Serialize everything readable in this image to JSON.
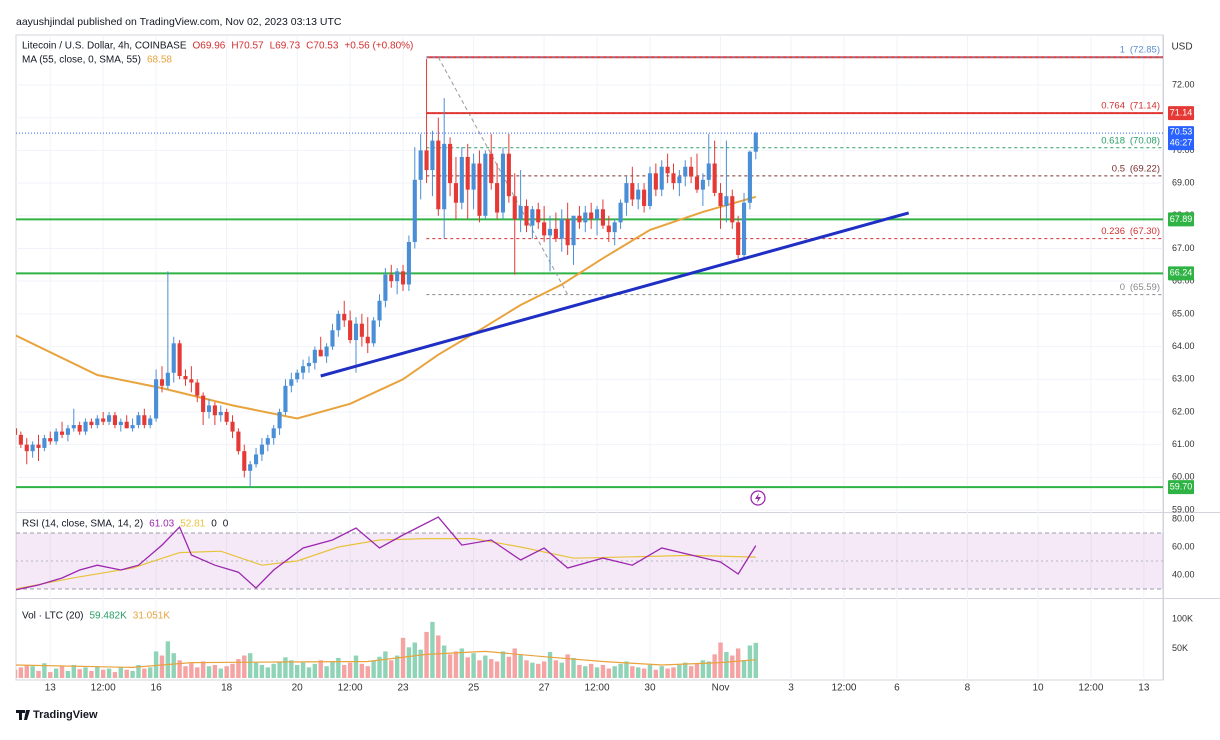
{
  "header": {
    "publisher": "aayushjindal published on TradingView.com, Nov 02, 2023 03:13 UTC",
    "brand": "TradingView"
  },
  "chart_data": {
    "type": "candlestick",
    "title": "Litecoin / U.S. Dollar, 4h, COINBASE",
    "legend_values": [
      "O69.96",
      "H70.57",
      "L69.73",
      "C70.53",
      "+0.56 (+0.80%)"
    ],
    "currency": "USD",
    "up_color": "#4a8fd6",
    "down_color": "#e53935",
    "xlim": [
      -2.55,
      195.6
    ],
    "xticks": [
      {
        "value": 6,
        "label": "13"
      },
      {
        "value": 15,
        "label": "12:00"
      },
      {
        "value": 24,
        "label": "16"
      },
      {
        "value": 36,
        "label": "18"
      },
      {
        "value": 48,
        "label": "20"
      },
      {
        "value": 57,
        "label": "12:00"
      },
      {
        "value": 66,
        "label": "23"
      },
      {
        "value": 78,
        "label": "25"
      },
      {
        "value": 90,
        "label": "27"
      },
      {
        "value": 99,
        "label": "12:00"
      },
      {
        "value": 108,
        "label": "30"
      },
      {
        "value": 120,
        "label": "Nov"
      },
      {
        "value": 132,
        "label": "3"
      },
      {
        "value": 141,
        "label": "12:00"
      },
      {
        "value": 150,
        "label": "6"
      },
      {
        "value": 162,
        "label": "8"
      },
      {
        "value": 174,
        "label": "10"
      },
      {
        "value": 183,
        "label": "12:00"
      },
      {
        "value": 192,
        "label": "13"
      }
    ],
    "ylim": [
      58.94,
      73.53
    ],
    "yticks": [
      {
        "value": 59,
        "label": "59.00"
      },
      {
        "value": 60,
        "label": "60.00"
      },
      {
        "value": 61,
        "label": "61.00"
      },
      {
        "value": 62,
        "label": "62.00"
      },
      {
        "value": 63,
        "label": "63.00"
      },
      {
        "value": 64,
        "label": "64.00"
      },
      {
        "value": 65,
        "label": "65.00"
      },
      {
        "value": 66,
        "label": "66.00"
      },
      {
        "value": 67,
        "label": "67.00"
      },
      {
        "value": 68,
        "label": "68.00"
      },
      {
        "value": 69,
        "label": "69.00"
      },
      {
        "value": 70,
        "label": "70.00"
      },
      {
        "value": 71,
        "label": "71.00"
      },
      {
        "value": 72,
        "label": "72.00"
      }
    ],
    "grid": true,
    "candles": [
      [
        61.5,
        61.6,
        61.2,
        61.3
      ],
      [
        61.3,
        61.4,
        60.9,
        61.0
      ],
      [
        61.0,
        61.2,
        60.4,
        60.8
      ],
      [
        60.8,
        61.1,
        60.6,
        61.0
      ],
      [
        61.0,
        61.3,
        60.5,
        60.9
      ],
      [
        60.9,
        61.3,
        60.8,
        61.2
      ],
      [
        61.2,
        61.4,
        61.0,
        61.1
      ],
      [
        61.1,
        61.5,
        61.0,
        61.4
      ],
      [
        61.4,
        61.7,
        61.2,
        61.3
      ],
      [
        61.3,
        61.6,
        61.1,
        61.5
      ],
      [
        61.5,
        62.1,
        61.4,
        61.6
      ],
      [
        61.6,
        61.7,
        61.3,
        61.4
      ],
      [
        61.4,
        61.8,
        61.3,
        61.7
      ],
      [
        61.7,
        61.8,
        61.5,
        61.6
      ],
      [
        61.6,
        61.9,
        61.5,
        61.8
      ],
      [
        61.8,
        62.0,
        61.6,
        61.7
      ],
      [
        61.7,
        62.0,
        61.6,
        61.9
      ],
      [
        61.9,
        62.0,
        61.5,
        61.6
      ],
      [
        61.6,
        61.8,
        61.4,
        61.7
      ],
      [
        61.7,
        61.9,
        61.5,
        61.5
      ],
      [
        61.5,
        61.8,
        61.4,
        61.6
      ],
      [
        61.6,
        62.0,
        61.5,
        61.9
      ],
      [
        61.9,
        62.1,
        61.5,
        61.6
      ],
      [
        61.6,
        61.9,
        61.5,
        61.8
      ],
      [
        61.8,
        63.3,
        61.7,
        63.0
      ],
      [
        63.0,
        63.4,
        62.6,
        62.8
      ],
      [
        62.8,
        66.3,
        62.7,
        63.2
      ],
      [
        63.2,
        64.3,
        62.9,
        64.1
      ],
      [
        64.1,
        64.2,
        63.0,
        63.1
      ],
      [
        63.1,
        63.3,
        62.8,
        63.0
      ],
      [
        63.0,
        63.4,
        62.6,
        62.9
      ],
      [
        62.9,
        63.0,
        62.3,
        62.5
      ],
      [
        62.5,
        62.6,
        61.6,
        62.0
      ],
      [
        62.0,
        62.4,
        61.8,
        62.2
      ],
      [
        62.2,
        62.3,
        61.6,
        61.9
      ],
      [
        61.9,
        62.2,
        61.7,
        62.0
      ],
      [
        62.0,
        62.1,
        61.6,
        61.7
      ],
      [
        61.7,
        61.9,
        61.2,
        61.4
      ],
      [
        61.4,
        61.5,
        60.7,
        60.8
      ],
      [
        60.8,
        61.0,
        60.0,
        60.2
      ],
      [
        60.2,
        60.5,
        59.7,
        60.4
      ],
      [
        60.4,
        60.9,
        60.3,
        60.7
      ],
      [
        60.7,
        61.2,
        60.5,
        61.0
      ],
      [
        61.0,
        61.3,
        60.8,
        61.2
      ],
      [
        61.2,
        61.6,
        61.0,
        61.5
      ],
      [
        61.5,
        62.1,
        61.3,
        62.0
      ],
      [
        62.0,
        63.0,
        61.9,
        62.8
      ],
      [
        62.8,
        63.2,
        62.6,
        63.0
      ],
      [
        63.0,
        63.3,
        62.9,
        63.2
      ],
      [
        63.2,
        63.6,
        63.0,
        63.4
      ],
      [
        63.4,
        63.7,
        63.2,
        63.5
      ],
      [
        63.5,
        64.0,
        63.3,
        63.9
      ],
      [
        63.9,
        64.3,
        63.7,
        63.7
      ],
      [
        63.7,
        64.1,
        63.5,
        64.0
      ],
      [
        64.0,
        64.7,
        63.9,
        64.5
      ],
      [
        64.5,
        65.1,
        64.3,
        65.0
      ],
      [
        65.0,
        65.4,
        64.6,
        64.8
      ],
      [
        64.8,
        65.1,
        64.1,
        64.2
      ],
      [
        64.2,
        64.9,
        63.2,
        64.7
      ],
      [
        64.7,
        65.0,
        64.0,
        64.3
      ],
      [
        64.3,
        64.9,
        63.8,
        64.1
      ],
      [
        64.1,
        64.9,
        64.0,
        64.8
      ],
      [
        64.8,
        65.6,
        64.6,
        65.4
      ],
      [
        65.4,
        66.4,
        65.2,
        66.2
      ],
      [
        66.2,
        66.5,
        65.8,
        66.0
      ],
      [
        66.0,
        66.4,
        65.6,
        66.3
      ],
      [
        66.3,
        66.5,
        65.7,
        65.9
      ],
      [
        65.9,
        67.4,
        65.7,
        67.2
      ],
      [
        67.2,
        70.1,
        67.0,
        69.1
      ],
      [
        69.1,
        70.5,
        68.5,
        70.0
      ],
      [
        70.0,
        72.8,
        69.0,
        69.4
      ],
      [
        69.4,
        70.6,
        68.6,
        70.3
      ],
      [
        70.3,
        71.0,
        68.0,
        68.2
      ],
      [
        68.2,
        71.6,
        67.3,
        70.2
      ],
      [
        70.2,
        70.4,
        68.6,
        69.0
      ],
      [
        69.0,
        69.8,
        67.9,
        68.4
      ],
      [
        68.4,
        70.1,
        68.2,
        69.8
      ],
      [
        69.8,
        70.2,
        67.9,
        68.8
      ],
      [
        68.8,
        69.9,
        68.2,
        69.6
      ],
      [
        69.6,
        70.0,
        67.8,
        68.0
      ],
      [
        68.0,
        70.0,
        67.9,
        69.9
      ],
      [
        69.9,
        70.5,
        68.8,
        69.0
      ],
      [
        69.0,
        69.6,
        67.9,
        68.1
      ],
      [
        68.1,
        70.1,
        67.9,
        69.9
      ],
      [
        69.9,
        70.5,
        68.4,
        68.6
      ],
      [
        68.6,
        69.3,
        66.2,
        67.9
      ],
      [
        67.9,
        69.4,
        67.5,
        68.3
      ],
      [
        68.3,
        68.5,
        67.5,
        67.7
      ],
      [
        67.7,
        68.3,
        67.3,
        68.2
      ],
      [
        68.2,
        68.4,
        67.6,
        67.8
      ],
      [
        67.8,
        68.3,
        67.2,
        67.4
      ],
      [
        67.4,
        68.0,
        66.3,
        67.6
      ],
      [
        67.6,
        68.1,
        67.2,
        67.3
      ],
      [
        67.3,
        68.2,
        66.9,
        67.9
      ],
      [
        67.9,
        68.4,
        66.8,
        67.1
      ],
      [
        67.1,
        68.0,
        66.5,
        68.0
      ],
      [
        68.0,
        68.3,
        67.6,
        67.8
      ],
      [
        67.8,
        68.3,
        67.5,
        68.1
      ],
      [
        68.1,
        68.4,
        67.6,
        67.9
      ],
      [
        67.9,
        68.3,
        67.4,
        68.2
      ],
      [
        68.2,
        68.5,
        67.6,
        67.7
      ],
      [
        67.7,
        68.0,
        67.2,
        67.5
      ],
      [
        67.5,
        67.9,
        67.1,
        67.8
      ],
      [
        67.8,
        68.5,
        67.6,
        68.4
      ],
      [
        68.4,
        69.2,
        68.0,
        69.0
      ],
      [
        69.0,
        69.5,
        68.3,
        68.5
      ],
      [
        68.5,
        69.0,
        68.2,
        68.8
      ],
      [
        68.8,
        69.0,
        68.1,
        68.3
      ],
      [
        68.3,
        69.5,
        68.2,
        69.3
      ],
      [
        69.3,
        69.6,
        68.6,
        68.8
      ],
      [
        68.8,
        69.7,
        68.6,
        69.5
      ],
      [
        69.5,
        69.9,
        69.0,
        69.3
      ],
      [
        69.3,
        69.6,
        68.8,
        69.0
      ],
      [
        69.0,
        69.4,
        68.6,
        69.2
      ],
      [
        69.2,
        69.7,
        68.9,
        69.5
      ],
      [
        69.5,
        69.8,
        69.0,
        69.2
      ],
      [
        69.2,
        69.9,
        68.7,
        68.8
      ],
      [
        68.8,
        69.3,
        68.3,
        69.1
      ],
      [
        69.1,
        70.5,
        68.9,
        69.6
      ],
      [
        69.6,
        70.3,
        68.6,
        68.7
      ],
      [
        68.7,
        69.0,
        67.6,
        68.3
      ],
      [
        68.3,
        70.3,
        67.8,
        68.6
      ],
      [
        68.6,
        68.8,
        67.6,
        67.8
      ],
      [
        67.8,
        68.0,
        66.7,
        66.8
      ],
      [
        66.8,
        68.7,
        66.7,
        68.4
      ],
      [
        68.4,
        70.0,
        68.2,
        69.96
      ],
      [
        69.96,
        70.57,
        69.73,
        70.53
      ]
    ],
    "last": {
      "value": 70.53,
      "countdown": "46:27",
      "color": "#2962ff"
    },
    "ma": {
      "label": "MA (55, close, 0, SMA, 55)",
      "last_label": "68.58",
      "color": "#e8a33d",
      "x": [
        0,
        14,
        25,
        37,
        48,
        57,
        66,
        72,
        79,
        86,
        93,
        100,
        108,
        117,
        126
      ],
      "values": [
        64.35,
        63.13,
        62.73,
        62.2,
        61.8,
        62.25,
        63.0,
        63.75,
        64.5,
        65.27,
        65.9,
        66.7,
        67.57,
        68.12,
        68.58
      ]
    },
    "levels": [
      {
        "value": 72.85,
        "color": "#e53935",
        "from": 70
      },
      {
        "value": 71.14,
        "color": "#e53935",
        "from": 70,
        "label": "71.14"
      },
      {
        "value": 67.89,
        "color": "#2fb344",
        "label": "67.89"
      },
      {
        "value": 66.24,
        "color": "#2fb344",
        "label": "66.24"
      },
      {
        "value": 59.7,
        "color": "#2fb344",
        "label": "59.70"
      }
    ],
    "fib_anchor": {
      "x": [
        72,
        94
      ],
      "values": [
        72.85,
        65.59
      ]
    },
    "fib": [
      {
        "level": 1,
        "price": 72.85,
        "price_label": "(72.85)",
        "color": "#5b8fd0"
      },
      {
        "level": 0.764,
        "price": 71.14,
        "price_label": "(71.14)",
        "color": "#d32f2f"
      },
      {
        "level": 0.618,
        "price": 70.08,
        "price_label": "(70.08)",
        "color": "#2a9d63"
      },
      {
        "level": 0.5,
        "price": 69.22,
        "price_label": "(69.22)",
        "color": "#7a2e2e"
      },
      {
        "level": 0.236,
        "price": 67.3,
        "price_label": "(67.30)",
        "color": "#d32f2f"
      },
      {
        "level": 0,
        "price": 65.59,
        "price_label": "(65.59)",
        "color": "#888888"
      }
    ],
    "trendline": {
      "x": [
        52,
        152
      ],
      "values": [
        63.1,
        68.09
      ],
      "color": "#1f2fc4"
    },
    "rsi": {
      "label": "RSI (14, close, SMA, 14, 2)",
      "value_label": "61.03",
      "sma_label": "52.81",
      "extra": [
        "0",
        "0"
      ],
      "color": "#9c27b0",
      "sma_color": "#e8c33d",
      "ylim": [
        24.3,
        84.3
      ],
      "yticks": [
        {
          "value": 40,
          "label": "40.00"
        },
        {
          "value": 60,
          "label": "60.00"
        },
        {
          "value": 80,
          "label": "80.00"
        }
      ],
      "band": [
        30,
        70
      ],
      "mid": 50,
      "x": [
        0,
        4,
        8,
        11,
        14,
        18,
        21,
        25,
        28,
        30,
        34,
        38,
        41,
        44,
        49,
        54,
        58,
        62,
        66,
        72,
        76,
        81,
        86,
        90,
        94,
        100,
        105,
        110,
        115,
        120,
        123,
        126
      ],
      "values": [
        29.3,
        32.9,
        37.9,
        43.6,
        47,
        43.6,
        47,
        61.4,
        74.3,
        54.3,
        47,
        42,
        30.7,
        43.6,
        59.3,
        65,
        73.6,
        59.3,
        68.6,
        81.4,
        61.4,
        65,
        50.7,
        59.3,
        45,
        52.1,
        47,
        59.3,
        54.3,
        49.3,
        40.7,
        61.03
      ],
      "sma_x": [
        0,
        10,
        20,
        28,
        35,
        42,
        48,
        55,
        62,
        70,
        78,
        86,
        95,
        105,
        115,
        126
      ],
      "sma_values": [
        30,
        38,
        45,
        56,
        57,
        47,
        50,
        60,
        65,
        66,
        66,
        60,
        52,
        53,
        54,
        52.81
      ]
    },
    "volume": {
      "label": "Vol · LTC (20)",
      "value_label": "59.482K",
      "ma_label": "31.051K",
      "up_color": "#90d4b8",
      "down_color": "#f5a3a3",
      "ma_color": "#e8a33d",
      "ylim": [
        0,
        132000
      ],
      "yticks": [
        {
          "value": 50000,
          "label": "50K"
        },
        {
          "value": 100000,
          "label": "100K"
        }
      ],
      "values": [
        14000,
        18000,
        22000,
        20000,
        12000,
        25000,
        10000,
        16000,
        20000,
        12000,
        22000,
        15000,
        18000,
        12000,
        20000,
        14000,
        16000,
        10000,
        18000,
        14000,
        12000,
        22000,
        16000,
        18000,
        45000,
        38000,
        62000,
        42000,
        30000,
        20000,
        25000,
        18000,
        28000,
        20000,
        22000,
        16000,
        20000,
        24000,
        32000,
        38000,
        42000,
        26000,
        22000,
        18000,
        24000,
        28000,
        35000,
        30000,
        22000,
        26000,
        18000,
        24000,
        30000,
        20000,
        28000,
        34000,
        22000,
        26000,
        38000,
        24000,
        20000,
        30000,
        36000,
        45000,
        30000,
        38000,
        68000,
        52000,
        60000,
        48000,
        78000,
        95000,
        72000,
        55000,
        40000,
        45000,
        50000,
        35000,
        42000,
        30000,
        38000,
        32000,
        28000,
        45000,
        36000,
        50000,
        40000,
        30000,
        26000,
        24000,
        28000,
        44000,
        30000,
        26000,
        40000,
        34000,
        22000,
        20000,
        24000,
        18000,
        22000,
        16000,
        20000,
        24000,
        28000,
        20000,
        18000,
        16000,
        22000,
        14000,
        20000,
        16000,
        18000,
        22000,
        26000,
        20000,
        24000,
        30000,
        28000,
        40000,
        60000,
        44000,
        38000,
        50000,
        30000,
        55000,
        59482
      ],
      "ma_x": [
        0,
        20,
        30,
        45,
        60,
        70,
        80,
        90,
        100,
        110,
        120,
        126
      ],
      "ma_values": [
        22000,
        18000,
        26000,
        27000,
        28000,
        40000,
        45000,
        36000,
        28000,
        22000,
        26000,
        31051
      ]
    }
  }
}
